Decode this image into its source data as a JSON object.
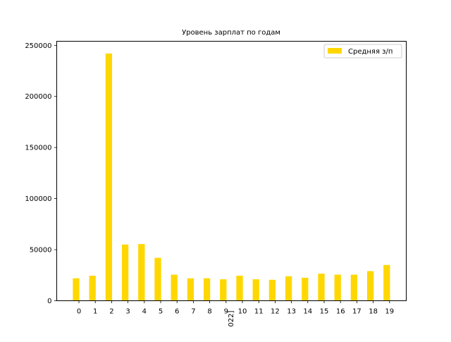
{
  "chart_data": {
    "type": "bar",
    "title": "Уровень зарплат по годам",
    "xlabel": "",
    "ylabel": "",
    "categories": [
      "0",
      "1",
      "2",
      "3",
      "4",
      "5",
      "6",
      "7",
      "8",
      "9",
      "10",
      "11",
      "12",
      "13",
      "14",
      "15",
      "16",
      "17",
      "18",
      "19"
    ],
    "series": [
      {
        "name": "Средняя з/п",
        "color": "#ffd700",
        "values": [
          22000,
          24500,
          242000,
          55000,
          55500,
          42000,
          25500,
          22000,
          22000,
          21000,
          24500,
          21000,
          20500,
          24000,
          22500,
          26500,
          25500,
          25500,
          29000,
          35000
        ]
      }
    ],
    "ylim": [
      0,
      254000
    ],
    "yticks": [
      0,
      50000,
      100000,
      150000,
      200000,
      250000
    ],
    "ytick_labels": [
      "0",
      "50000",
      "100000",
      "150000",
      "200000",
      "250000"
    ],
    "grid": false,
    "legend_position": "upper right",
    "extra_x_text": "022]"
  }
}
